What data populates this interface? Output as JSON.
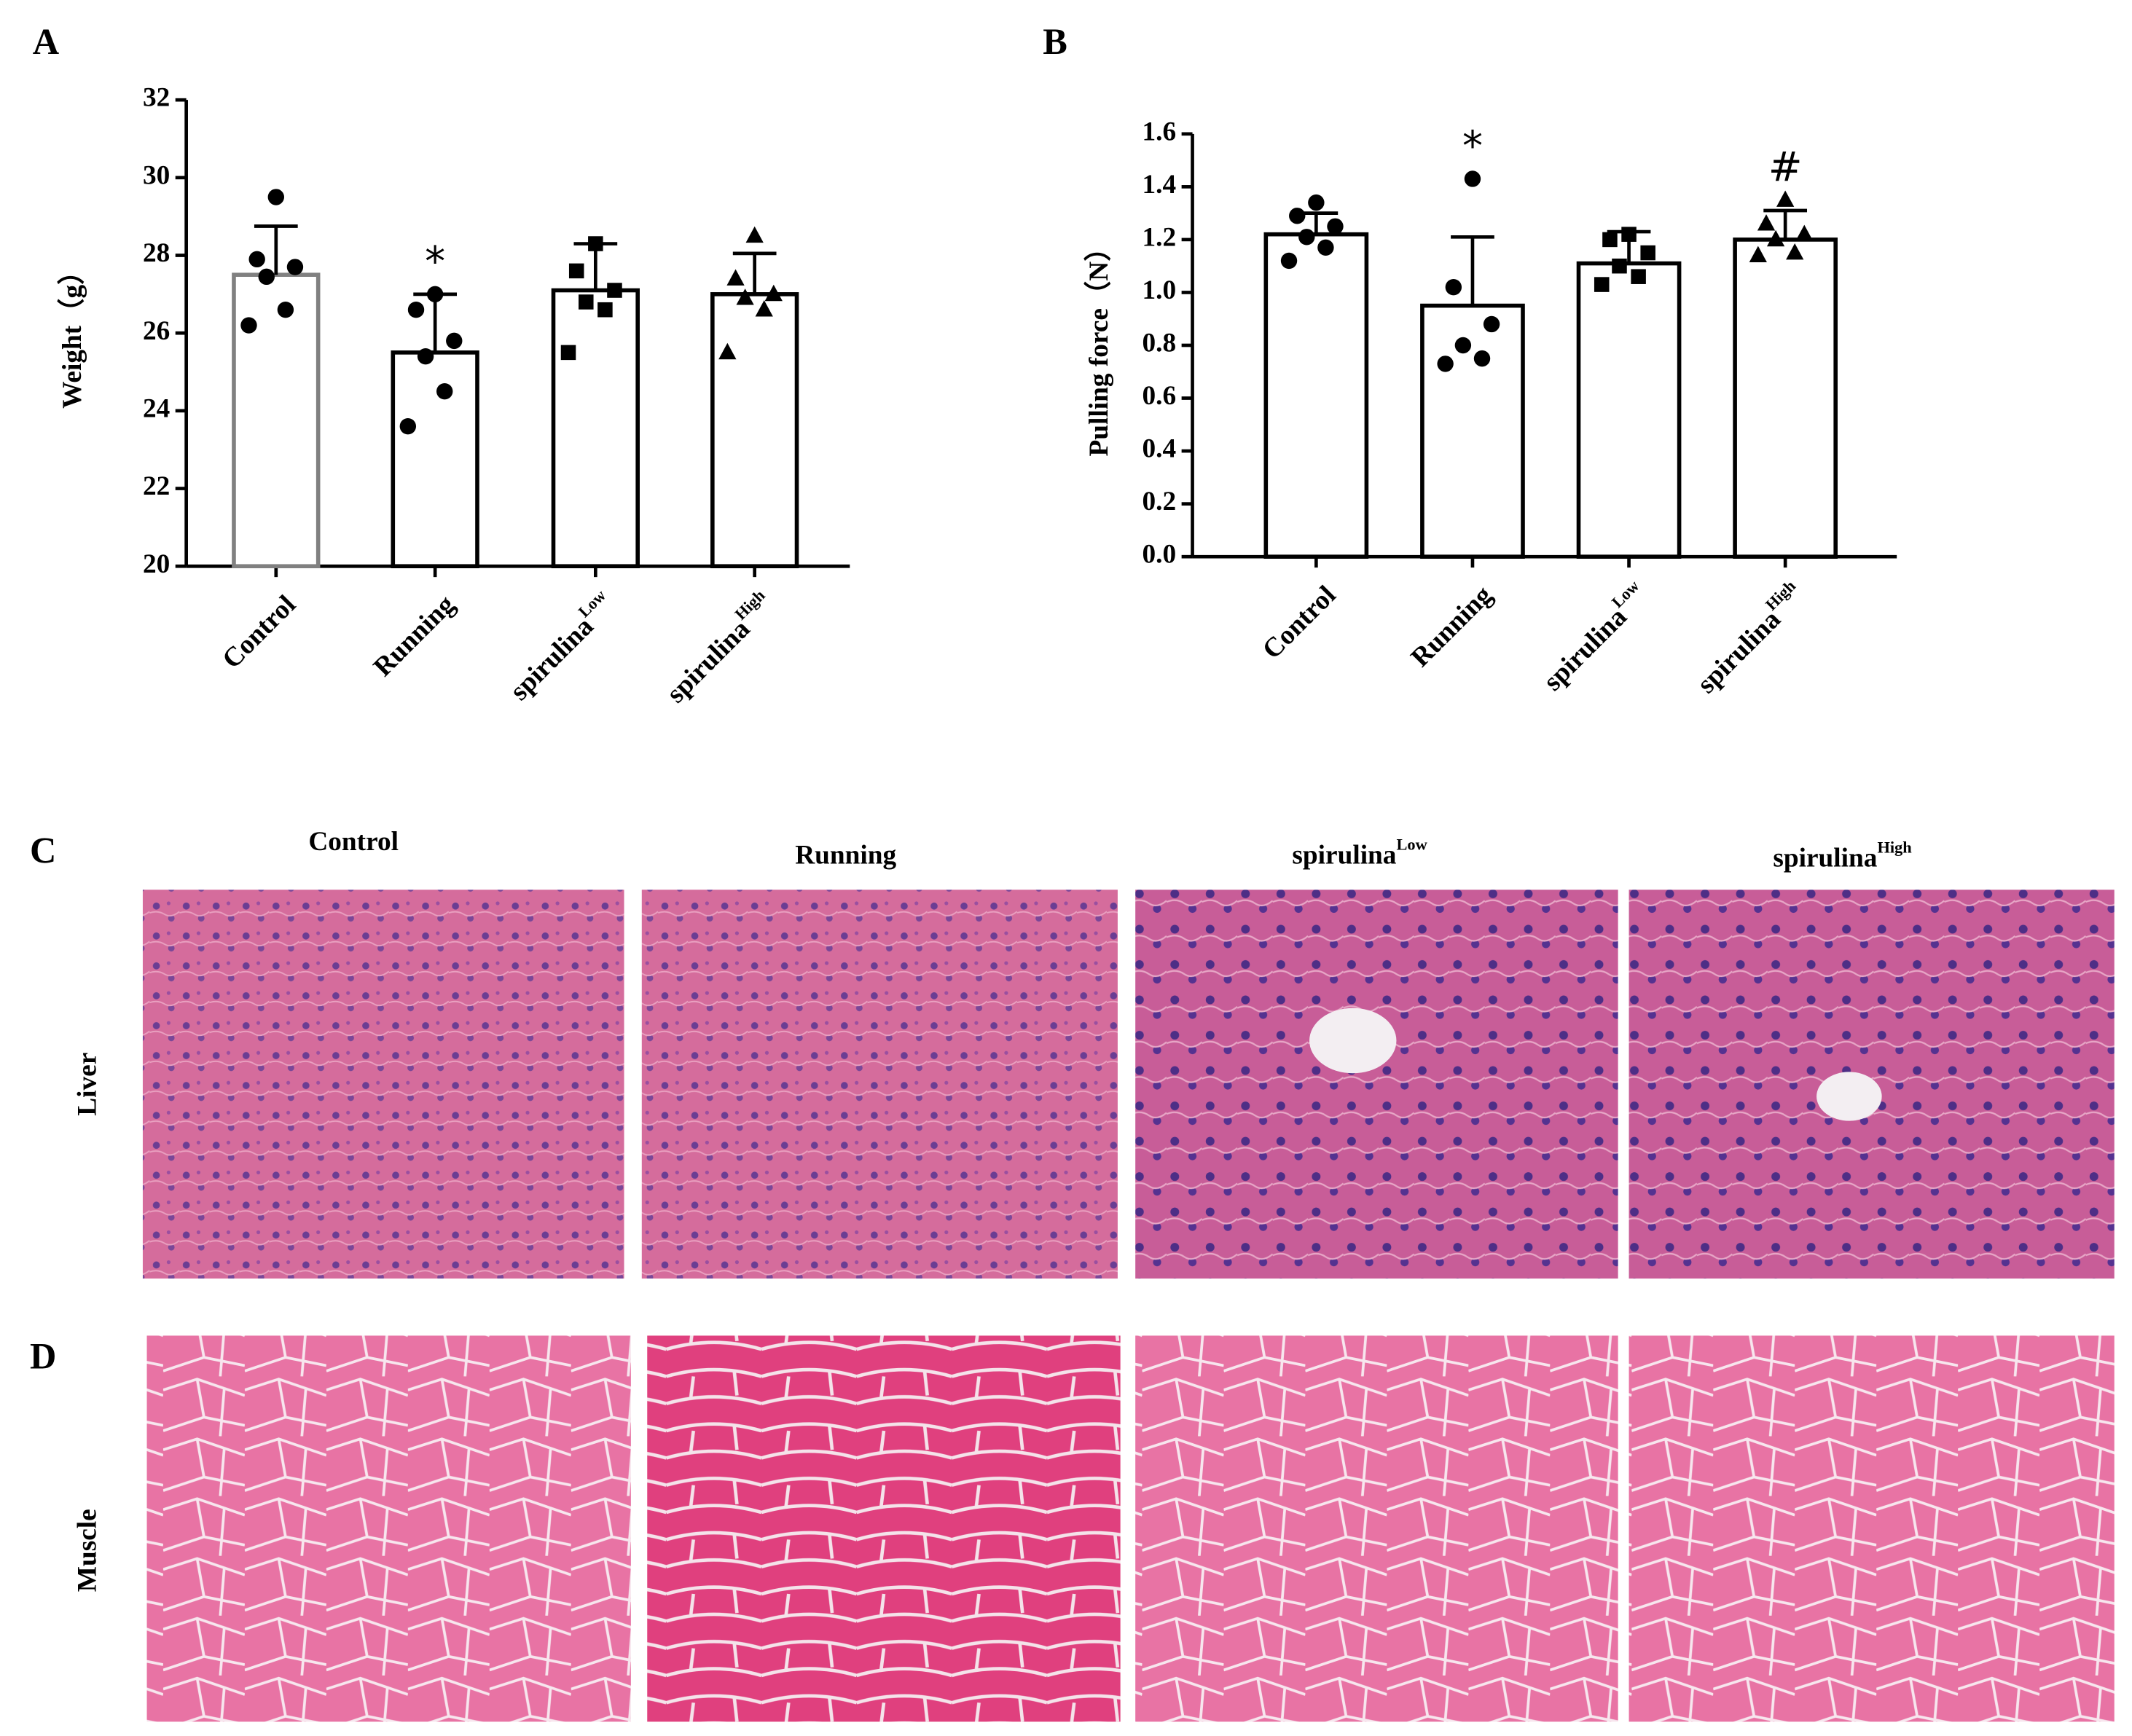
{
  "panel_labels": [
    "A",
    "B",
    "C",
    "D"
  ],
  "chart_data": [
    {
      "type": "bar",
      "y_label": "Weight（g）",
      "categories": [
        "Control",
        "Running",
        "spirulina",
        "spirulina"
      ],
      "category_superscripts": [
        null,
        null,
        "Low",
        "High"
      ],
      "values": [
        27.5,
        25.5,
        27.1,
        27.0
      ],
      "errors": [
        1.25,
        1.5,
        1.2,
        1.05
      ],
      "points": [
        [
          29.5,
          27.9,
          27.7,
          27.45,
          26.6,
          26.2
        ],
        [
          27.0,
          26.6,
          25.8,
          25.4,
          24.5,
          23.6
        ],
        [
          28.3,
          27.6,
          27.1,
          26.8,
          26.6,
          25.5
        ],
        [
          28.5,
          27.4,
          27.0,
          26.9,
          26.6,
          25.5
        ]
      ],
      "markers": [
        "circle",
        "circle",
        "square",
        "triangle"
      ],
      "annotations": [
        null,
        "*",
        null,
        null
      ],
      "bar_edge_colors": [
        "#808080",
        "#000000",
        "#000000",
        "#000000"
      ],
      "ylim": [
        20,
        32
      ],
      "yticks": [
        20,
        22,
        24,
        26,
        28,
        30,
        32
      ]
    },
    {
      "type": "bar",
      "y_label": "Pulling force（N）",
      "categories": [
        "Control",
        "Running",
        "spirulina",
        "spirulina"
      ],
      "category_superscripts": [
        null,
        null,
        "Low",
        "High"
      ],
      "values": [
        1.22,
        0.95,
        1.11,
        1.2
      ],
      "errors": [
        0.08,
        0.26,
        0.12,
        0.11
      ],
      "points": [
        [
          1.34,
          1.29,
          1.25,
          1.21,
          1.17,
          1.12
        ],
        [
          1.43,
          1.02,
          0.88,
          0.8,
          0.75,
          0.73
        ],
        [
          1.22,
          1.2,
          1.15,
          1.1,
          1.06,
          1.03
        ],
        [
          1.35,
          1.26,
          1.22,
          1.2,
          1.15,
          1.14
        ]
      ],
      "markers": [
        "circle",
        "circle",
        "square",
        "triangle"
      ],
      "annotations": [
        null,
        "*",
        null,
        "#"
      ],
      "bar_edge_colors": [
        "#000000",
        "#000000",
        "#000000",
        "#000000"
      ],
      "ylim": [
        0,
        1.6
      ],
      "yticks": [
        {
          "value": 0,
          "label": "0.0"
        },
        0.2,
        0.4,
        0.6,
        0.8,
        {
          "value": 1,
          "label": "1.0"
        },
        1.2,
        1.4,
        1.6
      ]
    }
  ],
  "histology": {
    "columns": [
      {
        "text": "Control"
      },
      {
        "text": "Running"
      },
      {
        "text": "spirulina",
        "sup": "Low"
      },
      {
        "text": "spirulina",
        "sup": "High"
      }
    ],
    "rows": [
      "Liver",
      "Muscle"
    ]
  }
}
